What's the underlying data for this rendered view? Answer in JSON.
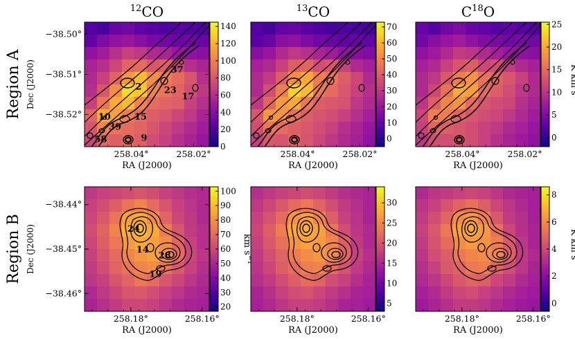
{
  "chart_data": {
    "type": "heatmap",
    "columns": [
      {
        "name": "12CO",
        "base": "12",
        "sup_sym": "CO"
      },
      {
        "name": "13CO",
        "base": "13",
        "sup_sym": "CO"
      },
      {
        "name": "C18O",
        "base": "C",
        "sup": "18",
        "rest": "O"
      }
    ],
    "rows": [
      {
        "label": "Region A"
      },
      {
        "label": "Region B"
      }
    ],
    "xlabel": "RA (J2000)",
    "ylabel": "Dec (J2000)",
    "colorbar_unit": "K km s",
    "colorbar_unit_sup": "−1",
    "colorbar_unit_alt": "km s",
    "colormap": [
      "#0d0887",
      "#5c01a6",
      "#9c179e",
      "#cc4778",
      "#ed7953",
      "#fdb42f",
      "#f0f921"
    ],
    "panels": [
      {
        "id": "A-12CO",
        "region": "A",
        "species": "12CO",
        "xlim": [
          258.055,
          258.015
        ],
        "ylim": [
          -38.528,
          -38.497
        ],
        "xticks": [
          "258.04°",
          "258.02°"
        ],
        "xtick_vals": [
          258.04,
          258.02
        ],
        "yticks": [
          "−38.50°",
          "−38.51°",
          "−38.52°"
        ],
        "ytick_vals": [
          -38.5,
          -38.51,
          -38.52
        ],
        "colorbar": {
          "min": 0,
          "max": 145,
          "ticks": [
            0,
            20,
            40,
            60,
            80,
            100,
            120,
            140
          ]
        },
        "cores": [
          {
            "label": "2",
            "ra": 258.0377,
            "dec": -38.5129
          },
          {
            "label": "37",
            "ra": 258.0253,
            "dec": -38.5087
          },
          {
            "label": "23",
            "ra": 258.0275,
            "dec": -38.5138
          },
          {
            "label": "17",
            "ra": 258.0218,
            "dec": -38.5153
          },
          {
            "label": "10",
            "ra": 258.0486,
            "dec": -38.5204
          },
          {
            "label": "15",
            "ra": 258.037,
            "dec": -38.5204
          },
          {
            "label": "39",
            "ra": 258.0452,
            "dec": -38.5229
          },
          {
            "label": "58",
            "ra": 258.0498,
            "dec": -38.526
          },
          {
            "label": "9",
            "ra": 258.0359,
            "dec": -38.5257
          }
        ]
      },
      {
        "id": "A-13CO",
        "region": "A",
        "species": "13CO",
        "xlim": [
          258.055,
          258.015
        ],
        "ylim": [
          -38.528,
          -38.497
        ],
        "xticks": [
          "258.04°",
          "258.02°"
        ],
        "xtick_vals": [
          258.04,
          258.02
        ],
        "yticks": [],
        "ytick_vals": [],
        "colorbar": {
          "min": -5,
          "max": 73,
          "ticks": [
            0,
            10,
            20,
            30,
            40,
            50,
            60,
            70
          ]
        }
      },
      {
        "id": "A-C18O",
        "region": "A",
        "species": "C18O",
        "xlim": [
          258.055,
          258.015
        ],
        "ylim": [
          -38.528,
          -38.497
        ],
        "xticks": [
          "258.04°",
          "258.02°"
        ],
        "xtick_vals": [
          258.04,
          258.02
        ],
        "yticks": [],
        "ytick_vals": [],
        "colorbar": {
          "min": -2,
          "max": 25.5,
          "ticks": [
            0,
            5,
            10,
            15,
            20,
            25
          ]
        }
      },
      {
        "id": "B-12CO",
        "region": "B",
        "species": "12CO",
        "xlim": [
          258.193,
          258.158
        ],
        "ylim": [
          -38.464,
          -38.436
        ],
        "xticks": [
          "258.18°",
          "258.16°"
        ],
        "xtick_vals": [
          258.18,
          258.16
        ],
        "yticks": [
          "−38.44°",
          "−38.45°",
          "−38.46°"
        ],
        "ytick_vals": [
          -38.44,
          -38.45,
          -38.46
        ],
        "colorbar": {
          "min": 17,
          "max": 103,
          "ticks": [
            20,
            30,
            40,
            50,
            60,
            70,
            80,
            90,
            100
          ]
        },
        "cores": [
          {
            "label": "24",
            "ra": 258.1792,
            "dec": -38.4453
          },
          {
            "label": "14",
            "ra": 258.1767,
            "dec": -38.45
          },
          {
            "label": "28",
            "ra": 258.1705,
            "dec": -38.4513
          },
          {
            "label": "19",
            "ra": 258.1731,
            "dec": -38.4555
          }
        ]
      },
      {
        "id": "B-13CO",
        "region": "B",
        "species": "13CO",
        "xlim": [
          258.193,
          258.158
        ],
        "ylim": [
          -38.464,
          -38.436
        ],
        "xticks": [
          "258.18°",
          "258.16°"
        ],
        "xtick_vals": [
          258.18,
          258.16
        ],
        "yticks": [],
        "ytick_vals": [],
        "colorbar": {
          "min": 3,
          "max": 34,
          "ticks": [
            5,
            10,
            15,
            20,
            25,
            30
          ]
        }
      },
      {
        "id": "B-C18O",
        "region": "B",
        "species": "C18O",
        "xlim": [
          258.193,
          258.158
        ],
        "ylim": [
          -38.464,
          -38.436
        ],
        "xticks": [
          "258.18°",
          "258.16°"
        ],
        "xtick_vals": [
          258.18,
          258.16
        ],
        "yticks": [],
        "ytick_vals": [],
        "colorbar": {
          "min": -0.6,
          "max": 8.6,
          "ticks": [
            0,
            2,
            4,
            6,
            8
          ]
        }
      }
    ],
    "intensity_grids": {
      "A-12CO": [
        [
          0.15,
          0.12,
          0.2,
          0.22,
          0.18,
          0.16,
          0.14,
          0.16,
          0.15,
          0.14
        ],
        [
          0.18,
          0.25,
          0.3,
          0.32,
          0.28,
          0.24,
          0.22,
          0.2,
          0.22,
          0.2
        ],
        [
          0.3,
          0.35,
          0.42,
          0.48,
          0.45,
          0.4,
          0.38,
          0.32,
          0.3,
          0.28
        ],
        [
          0.38,
          0.42,
          0.5,
          0.6,
          0.62,
          0.55,
          0.58,
          0.5,
          0.42,
          0.38
        ],
        [
          0.4,
          0.48,
          0.6,
          0.75,
          0.85,
          0.72,
          0.68,
          0.62,
          0.55,
          0.42
        ],
        [
          0.42,
          0.55,
          0.72,
          0.92,
          0.88,
          0.7,
          0.65,
          0.6,
          0.52,
          0.45
        ],
        [
          0.48,
          0.65,
          0.8,
          0.85,
          0.7,
          0.62,
          0.6,
          0.58,
          0.48,
          0.42
        ],
        [
          0.6,
          0.8,
          0.78,
          0.68,
          0.62,
          0.58,
          0.55,
          0.5,
          0.45,
          0.38
        ],
        [
          0.55,
          0.7,
          0.65,
          0.62,
          0.6,
          0.55,
          0.5,
          0.45,
          0.4,
          0.35
        ],
        [
          0.5,
          0.6,
          0.58,
          0.62,
          0.58,
          0.52,
          0.48,
          0.42,
          0.38,
          0.32
        ]
      ],
      "A-13CO": [
        [
          0.15,
          0.12,
          0.18,
          0.2,
          0.16,
          0.14,
          0.12,
          0.14,
          0.13,
          0.12
        ],
        [
          0.16,
          0.2,
          0.28,
          0.3,
          0.26,
          0.22,
          0.2,
          0.18,
          0.2,
          0.18
        ],
        [
          0.28,
          0.32,
          0.4,
          0.45,
          0.42,
          0.38,
          0.35,
          0.3,
          0.28,
          0.26
        ],
        [
          0.36,
          0.4,
          0.48,
          0.58,
          0.6,
          0.52,
          0.55,
          0.48,
          0.4,
          0.36
        ],
        [
          0.4,
          0.46,
          0.58,
          0.72,
          0.8,
          0.68,
          0.65,
          0.58,
          0.5,
          0.4
        ],
        [
          0.4,
          0.52,
          0.68,
          0.9,
          0.85,
          0.66,
          0.62,
          0.56,
          0.48,
          0.42
        ],
        [
          0.45,
          0.6,
          0.76,
          0.8,
          0.66,
          0.58,
          0.56,
          0.54,
          0.45,
          0.4
        ],
        [
          0.55,
          0.75,
          0.74,
          0.64,
          0.58,
          0.55,
          0.52,
          0.48,
          0.42,
          0.36
        ],
        [
          0.52,
          0.66,
          0.62,
          0.58,
          0.56,
          0.52,
          0.48,
          0.42,
          0.38,
          0.32
        ],
        [
          0.48,
          0.56,
          0.55,
          0.6,
          0.55,
          0.5,
          0.45,
          0.4,
          0.36,
          0.3
        ]
      ],
      "A-C18O": [
        [
          0.2,
          0.15,
          0.22,
          0.25,
          0.2,
          0.18,
          0.15,
          0.18,
          0.16,
          0.15
        ],
        [
          0.22,
          0.28,
          0.32,
          0.35,
          0.3,
          0.26,
          0.24,
          0.22,
          0.24,
          0.22
        ],
        [
          0.3,
          0.34,
          0.4,
          0.46,
          0.44,
          0.4,
          0.36,
          0.32,
          0.3,
          0.28
        ],
        [
          0.36,
          0.4,
          0.48,
          0.55,
          0.58,
          0.5,
          0.52,
          0.46,
          0.4,
          0.36
        ],
        [
          0.4,
          0.45,
          0.56,
          0.68,
          0.74,
          0.64,
          0.6,
          0.55,
          0.48,
          0.4
        ],
        [
          0.4,
          0.5,
          0.64,
          0.8,
          0.78,
          0.62,
          0.58,
          0.52,
          0.45,
          0.4
        ],
        [
          0.44,
          0.58,
          0.7,
          0.74,
          0.62,
          0.55,
          0.52,
          0.5,
          0.42,
          0.38
        ],
        [
          0.5,
          0.68,
          0.68,
          0.6,
          0.55,
          0.52,
          0.5,
          0.45,
          0.4,
          0.35
        ],
        [
          0.48,
          0.6,
          0.58,
          0.55,
          0.52,
          0.48,
          0.45,
          0.4,
          0.36,
          0.32
        ],
        [
          0.45,
          0.52,
          0.52,
          0.55,
          0.52,
          0.48,
          0.42,
          0.38,
          0.34,
          0.3
        ]
      ],
      "B-12CO": [
        [
          0.45,
          0.48,
          0.5,
          0.52,
          0.55,
          0.52,
          0.48,
          0.45,
          0.42,
          0.4
        ],
        [
          0.48,
          0.52,
          0.58,
          0.65,
          0.7,
          0.62,
          0.55,
          0.48,
          0.44,
          0.4
        ],
        [
          0.5,
          0.56,
          0.65,
          0.78,
          0.8,
          0.72,
          0.6,
          0.5,
          0.45,
          0.4
        ],
        [
          0.52,
          0.6,
          0.7,
          0.82,
          0.85,
          0.8,
          0.68,
          0.55,
          0.46,
          0.42
        ],
        [
          0.5,
          0.58,
          0.66,
          0.76,
          0.8,
          0.78,
          0.72,
          0.6,
          0.48,
          0.42
        ],
        [
          0.48,
          0.55,
          0.62,
          0.7,
          0.75,
          0.78,
          0.74,
          0.62,
          0.5,
          0.44
        ],
        [
          0.46,
          0.52,
          0.6,
          0.65,
          0.7,
          0.72,
          0.65,
          0.56,
          0.48,
          0.42
        ],
        [
          0.44,
          0.48,
          0.55,
          0.6,
          0.66,
          0.62,
          0.55,
          0.5,
          0.44,
          0.4
        ],
        [
          0.4,
          0.45,
          0.5,
          0.55,
          0.56,
          0.52,
          0.48,
          0.44,
          0.4,
          0.38
        ],
        [
          0.38,
          0.42,
          0.46,
          0.5,
          0.5,
          0.48,
          0.44,
          0.4,
          0.38,
          0.36
        ]
      ],
      "B-13CO": [
        [
          0.42,
          0.45,
          0.48,
          0.5,
          0.52,
          0.5,
          0.46,
          0.42,
          0.4,
          0.38
        ],
        [
          0.45,
          0.5,
          0.56,
          0.62,
          0.66,
          0.6,
          0.52,
          0.46,
          0.42,
          0.38
        ],
        [
          0.48,
          0.54,
          0.62,
          0.74,
          0.78,
          0.7,
          0.58,
          0.48,
          0.43,
          0.38
        ],
        [
          0.5,
          0.58,
          0.68,
          0.8,
          0.82,
          0.78,
          0.66,
          0.52,
          0.44,
          0.4
        ],
        [
          0.48,
          0.56,
          0.64,
          0.74,
          0.78,
          0.76,
          0.7,
          0.58,
          0.46,
          0.4
        ],
        [
          0.46,
          0.53,
          0.6,
          0.68,
          0.72,
          0.75,
          0.72,
          0.6,
          0.48,
          0.42
        ],
        [
          0.44,
          0.5,
          0.58,
          0.62,
          0.68,
          0.7,
          0.62,
          0.54,
          0.46,
          0.4
        ],
        [
          0.42,
          0.46,
          0.52,
          0.58,
          0.62,
          0.6,
          0.52,
          0.48,
          0.42,
          0.38
        ],
        [
          0.38,
          0.42,
          0.48,
          0.52,
          0.54,
          0.5,
          0.46,
          0.42,
          0.38,
          0.36
        ],
        [
          0.36,
          0.4,
          0.44,
          0.48,
          0.48,
          0.46,
          0.42,
          0.38,
          0.36,
          0.34
        ]
      ],
      "B-C18O": [
        [
          0.4,
          0.44,
          0.46,
          0.48,
          0.5,
          0.48,
          0.44,
          0.4,
          0.38,
          0.36
        ],
        [
          0.44,
          0.48,
          0.54,
          0.6,
          0.64,
          0.58,
          0.5,
          0.44,
          0.4,
          0.36
        ],
        [
          0.46,
          0.52,
          0.6,
          0.72,
          0.76,
          0.68,
          0.56,
          0.46,
          0.42,
          0.36
        ],
        [
          0.48,
          0.56,
          0.66,
          0.78,
          0.8,
          0.76,
          0.64,
          0.5,
          0.42,
          0.38
        ],
        [
          0.46,
          0.54,
          0.62,
          0.72,
          0.76,
          0.74,
          0.68,
          0.56,
          0.44,
          0.38
        ],
        [
          0.44,
          0.52,
          0.58,
          0.66,
          0.7,
          0.72,
          0.7,
          0.58,
          0.46,
          0.4
        ],
        [
          0.42,
          0.48,
          0.56,
          0.6,
          0.66,
          0.68,
          0.6,
          0.52,
          0.44,
          0.38
        ],
        [
          0.4,
          0.44,
          0.5,
          0.56,
          0.6,
          0.58,
          0.5,
          0.46,
          0.4,
          0.36
        ],
        [
          0.36,
          0.4,
          0.46,
          0.5,
          0.52,
          0.48,
          0.44,
          0.4,
          0.36,
          0.34
        ],
        [
          0.34,
          0.38,
          0.42,
          0.46,
          0.46,
          0.44,
          0.4,
          0.36,
          0.34,
          0.32
        ]
      ]
    }
  }
}
